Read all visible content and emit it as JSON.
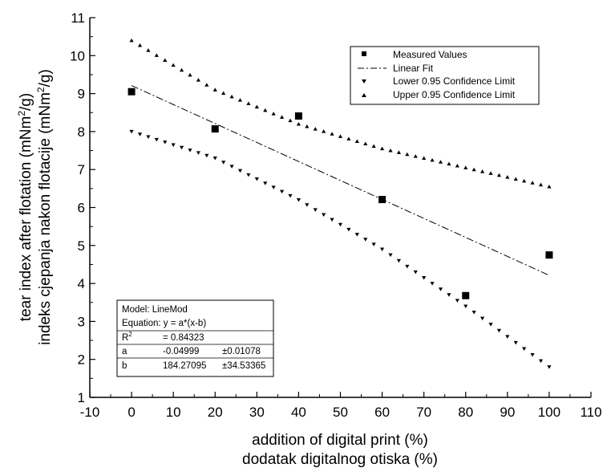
{
  "chart_data": {
    "type": "scatter",
    "xlabel_line1": "addition of digital print (%)",
    "xlabel_line2": "dodatak digitalnog otiska (%)",
    "ylabel_line1_prefix": "tear index after flotation (mNm",
    "ylabel_line2_prefix": "indeks cjepanja nakon flotacije (mNm",
    "ylabel_sup": "2",
    "ylabel_suffix": "/g)",
    "xlim": [
      -10,
      110
    ],
    "ylim": [
      1,
      11
    ],
    "x_ticks": [
      "-10",
      "0",
      "10",
      "20",
      "30",
      "40",
      "50",
      "60",
      "70",
      "80",
      "90",
      "100",
      "110"
    ],
    "y_ticks": [
      "1",
      "2",
      "3",
      "4",
      "5",
      "6",
      "7",
      "8",
      "9",
      "10",
      "11"
    ],
    "grid": false,
    "legend_position": "top-right",
    "series": [
      {
        "name": "Measured Values",
        "kind": "points",
        "marker": "square",
        "x": [
          0,
          20,
          40,
          60,
          80,
          100
        ],
        "y": [
          9.05,
          8.07,
          8.41,
          6.21,
          3.68,
          4.75
        ]
      },
      {
        "name": "Linear Fit",
        "kind": "line",
        "style": "dash-dot",
        "x": [
          0,
          100
        ],
        "y": [
          9.212,
          4.213
        ]
      },
      {
        "name": "Lower 0.95 Confidence Limit",
        "kind": "band",
        "marker": "triangle-down",
        "x_start": 0,
        "x_end": 100,
        "step": 2,
        "y_at": [
          [
            0,
            8.0
          ],
          [
            20,
            7.3
          ],
          [
            40,
            6.2
          ],
          [
            60,
            4.9
          ],
          [
            80,
            3.4
          ],
          [
            100,
            1.8
          ]
        ]
      },
      {
        "name": "Upper 0.95 Confidence Limit",
        "kind": "band",
        "marker": "triangle-up",
        "x_start": 0,
        "x_end": 100,
        "step": 2,
        "y_at": [
          [
            0,
            10.4
          ],
          [
            20,
            9.1
          ],
          [
            40,
            8.2
          ],
          [
            60,
            7.55
          ],
          [
            80,
            7.05
          ],
          [
            100,
            6.55
          ]
        ]
      }
    ],
    "stats_box": {
      "model": "Model: LineMod",
      "equation": "Equation: y = a*(x-b)",
      "r2_label": "R",
      "r2_sup": "2",
      "r2_value": "= 0.84323",
      "params": [
        {
          "name": "a",
          "value": "-0.04999",
          "error": "±0.01078"
        },
        {
          "name": "b",
          "value": "184.27095",
          "error": "±34.53365"
        }
      ]
    }
  }
}
